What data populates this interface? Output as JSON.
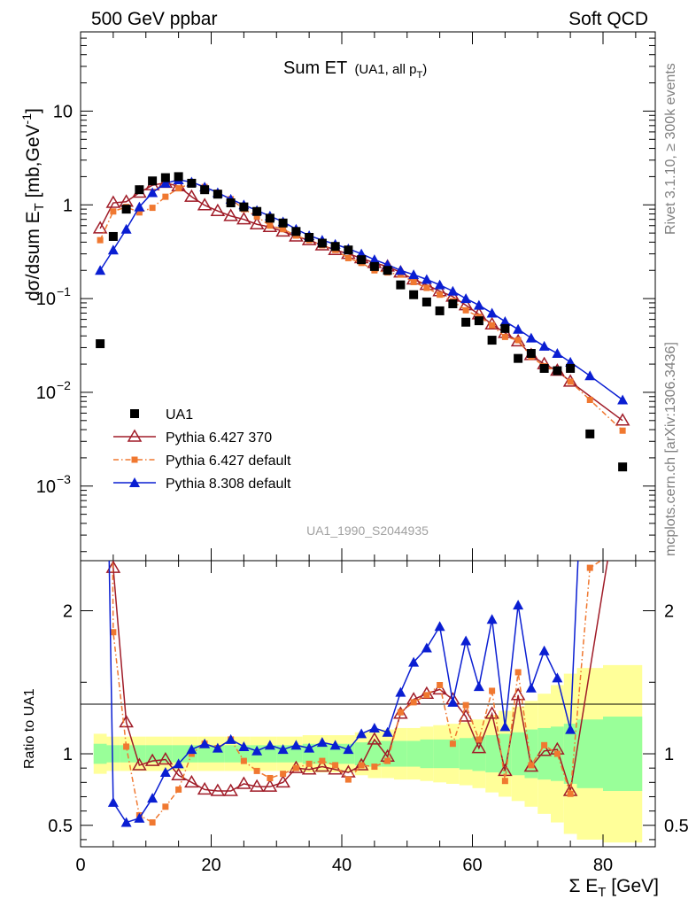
{
  "header": {
    "left_label": "500 GeV ppbar",
    "right_label": "Soft QCD"
  },
  "side": {
    "rivet": "Rivet 3.1.10, ≥ 300k events",
    "mcplots": "mcplots.cern.ch [arXiv:1306.3436]"
  },
  "chart_data": {
    "type": "scatter",
    "title": "Sum ET",
    "title_sub_pre": "(UA1, all p",
    "title_sub_sub": "T",
    "title_sub_post": ")",
    "analysis_id": "UA1_1990_S2044935",
    "ylabel_top": "dσ/dsum E",
    "ylabel_top_sub": "T",
    "ylabel_top_unit": " [mb,GeV",
    "ylabel_top_sup": "-1",
    "ylabel_top_close": "]",
    "ylabel_bottom": "Ratio to UA1",
    "xlabel": "Σ E",
    "xlabel_sub": "T",
    "xlabel_unit": " [GeV]",
    "xlim": [
      0,
      88
    ],
    "ylim_top": [
      0.00016,
      70
    ],
    "yscale_top": "log",
    "ylim_bottom": [
      0.35,
      2.35
    ],
    "x_ticks": [
      "0",
      "20",
      "40",
      "60",
      "80"
    ],
    "y_ticks_top": [
      {
        "base": "10",
        "exp": "",
        "value": 10
      },
      {
        "base": "1",
        "exp": "",
        "value": 1
      },
      {
        "base": "10",
        "exp": "−1",
        "value": 0.1
      },
      {
        "base": "10",
        "exp": "−2",
        "value": 0.01
      },
      {
        "base": "10",
        "exp": "−3",
        "value": 0.001
      }
    ],
    "y_ticks_bottom": [
      "0.5",
      "1",
      "2"
    ],
    "legend_position": "bottom-left",
    "data": {
      "name": "UA1",
      "color": "#000000",
      "x": [
        3,
        5,
        7,
        9,
        11,
        13,
        15,
        17,
        19,
        21,
        23,
        25,
        27,
        29,
        31,
        33,
        35,
        37,
        39,
        41,
        43,
        45,
        47,
        49,
        51,
        53,
        55,
        57,
        59,
        61,
        63,
        65,
        67,
        69,
        71,
        73,
        75,
        78,
        83
      ],
      "y": [
        0.033,
        0.46,
        0.9,
        1.45,
        1.8,
        1.95,
        2.0,
        1.7,
        1.45,
        1.3,
        1.05,
        0.95,
        0.85,
        0.72,
        0.64,
        0.52,
        0.45,
        0.39,
        0.36,
        0.33,
        0.26,
        0.22,
        0.2,
        0.14,
        0.11,
        0.092,
        0.074,
        0.088,
        0.056,
        0.058,
        0.036,
        0.048,
        0.023,
        0.026,
        0.018,
        0.017,
        0.018,
        0.0036,
        0.0016
      ]
    },
    "series": [
      {
        "name": "Pythia 6.427 370",
        "color": "#a01c28",
        "marker": "open-triangle",
        "line": "solid",
        "x": [
          3,
          5,
          7,
          9,
          11,
          13,
          15,
          17,
          19,
          21,
          23,
          25,
          27,
          29,
          31,
          33,
          35,
          37,
          39,
          41,
          43,
          45,
          47,
          49,
          51,
          53,
          55,
          57,
          59,
          61,
          63,
          65,
          67,
          69,
          71,
          73,
          75,
          83
        ],
        "y": [
          0.56,
          1.05,
          1.08,
          1.35,
          1.62,
          1.72,
          1.58,
          1.22,
          0.99,
          0.86,
          0.76,
          0.7,
          0.62,
          0.58,
          0.52,
          0.46,
          0.42,
          0.37,
          0.33,
          0.3,
          0.27,
          0.24,
          0.22,
          0.19,
          0.16,
          0.14,
          0.12,
          0.105,
          0.085,
          0.068,
          0.053,
          0.043,
          0.035,
          0.025,
          0.02,
          0.017,
          0.013,
          0.005
        ],
        "ratio": [
          16.9,
          2.3,
          1.22,
          0.92,
          0.95,
          0.96,
          0.85,
          0.8,
          0.75,
          0.74,
          0.74,
          0.79,
          0.77,
          0.77,
          0.8,
          0.9,
          0.89,
          0.91,
          0.89,
          0.87,
          0.92,
          1.1,
          0.98,
          1.28,
          1.38,
          1.42,
          1.45,
          1.38,
          1.26,
          1.04,
          1.28,
          0.88,
          1.41,
          0.91,
          1.02,
          1.03,
          0.74,
          3.0
        ]
      },
      {
        "name": "Pythia 6.427 default",
        "color": "#f07830",
        "marker": "square",
        "line": "dashdot",
        "x": [
          3,
          5,
          7,
          9,
          11,
          13,
          15,
          17,
          19,
          21,
          23,
          25,
          27,
          29,
          31,
          33,
          35,
          37,
          39,
          41,
          43,
          45,
          47,
          49,
          51,
          53,
          55,
          57,
          59,
          61,
          63,
          65,
          67,
          69,
          71,
          73,
          75,
          78,
          83
        ],
        "y": [
          0.42,
          0.85,
          0.95,
          0.83,
          0.93,
          1.22,
          1.5,
          1.7,
          1.55,
          1.35,
          1.15,
          0.9,
          0.75,
          0.6,
          0.55,
          0.47,
          0.42,
          0.37,
          0.33,
          0.27,
          0.24,
          0.2,
          0.19,
          0.18,
          0.15,
          0.13,
          0.11,
          0.094,
          0.075,
          0.064,
          0.052,
          0.039,
          0.036,
          0.024,
          0.019,
          0.017,
          0.013,
          0.0083,
          0.0039
        ],
        "ratio": [
          12.7,
          1.85,
          1.05,
          0.57,
          0.52,
          0.63,
          0.75,
          1.0,
          1.07,
          1.04,
          1.1,
          0.95,
          0.88,
          0.83,
          0.86,
          0.9,
          0.93,
          0.95,
          0.92,
          0.82,
          0.92,
          0.91,
          0.95,
          1.29,
          1.36,
          1.41,
          1.48,
          1.07,
          1.34,
          1.1,
          1.44,
          0.81,
          1.57,
          0.92,
          1.06,
          1.0,
          0.72,
          2.3,
          2.45
        ]
      },
      {
        "name": "Pythia 8.308 default",
        "color": "#0a1ed2",
        "marker": "triangle",
        "line": "solid",
        "x": [
          3,
          5,
          7,
          9,
          11,
          13,
          15,
          17,
          19,
          21,
          23,
          25,
          27,
          29,
          31,
          33,
          35,
          37,
          39,
          41,
          43,
          45,
          47,
          49,
          51,
          53,
          55,
          57,
          59,
          61,
          63,
          65,
          67,
          69,
          71,
          73,
          75,
          78,
          83
        ],
        "y": [
          0.2,
          0.33,
          0.55,
          0.95,
          1.35,
          1.7,
          1.85,
          1.75,
          1.55,
          1.35,
          1.15,
          1.0,
          0.87,
          0.76,
          0.66,
          0.55,
          0.47,
          0.42,
          0.38,
          0.34,
          0.3,
          0.26,
          0.23,
          0.2,
          0.18,
          0.16,
          0.14,
          0.12,
          0.1,
          0.085,
          0.07,
          0.057,
          0.047,
          0.038,
          0.031,
          0.026,
          0.021,
          0.015,
          0.0083
        ],
        "ratio": [
          6.1,
          0.66,
          0.52,
          0.55,
          0.69,
          0.87,
          0.93,
          1.03,
          1.07,
          1.04,
          1.1,
          1.05,
          1.02,
          1.06,
          1.03,
          1.06,
          1.04,
          1.08,
          1.06,
          1.03,
          1.14,
          1.18,
          1.15,
          1.43,
          1.64,
          1.74,
          1.89,
          1.36,
          1.79,
          1.47,
          1.94,
          1.19,
          2.04,
          1.46,
          1.72,
          1.53,
          1.17,
          4.2,
          5.2
        ]
      }
    ],
    "uncertainty_bands": {
      "x_edges": [
        2,
        4,
        6,
        8,
        10,
        12,
        14,
        16,
        18,
        20,
        22,
        24,
        26,
        28,
        30,
        32,
        34,
        36,
        38,
        40,
        42,
        44,
        46,
        48,
        50,
        52,
        54,
        56,
        58,
        60,
        62,
        64,
        66,
        68,
        70,
        72,
        74,
        76,
        80,
        86
      ],
      "green_halfwidth": [
        0.07,
        0.06,
        0.06,
        0.06,
        0.06,
        0.06,
        0.06,
        0.06,
        0.06,
        0.06,
        0.06,
        0.06,
        0.06,
        0.06,
        0.06,
        0.06,
        0.07,
        0.07,
        0.07,
        0.07,
        0.08,
        0.09,
        0.09,
        0.09,
        0.09,
        0.1,
        0.1,
        0.1,
        0.11,
        0.12,
        0.13,
        0.14,
        0.15,
        0.17,
        0.18,
        0.19,
        0.21,
        0.24,
        0.26
      ],
      "yellow_halfwidth": [
        0.14,
        0.12,
        0.12,
        0.12,
        0.12,
        0.12,
        0.12,
        0.12,
        0.12,
        0.12,
        0.12,
        0.12,
        0.12,
        0.12,
        0.12,
        0.12,
        0.13,
        0.13,
        0.13,
        0.13,
        0.15,
        0.17,
        0.17,
        0.18,
        0.18,
        0.19,
        0.2,
        0.21,
        0.22,
        0.24,
        0.27,
        0.3,
        0.33,
        0.37,
        0.42,
        0.48,
        0.56,
        0.6,
        0.62
      ]
    }
  }
}
